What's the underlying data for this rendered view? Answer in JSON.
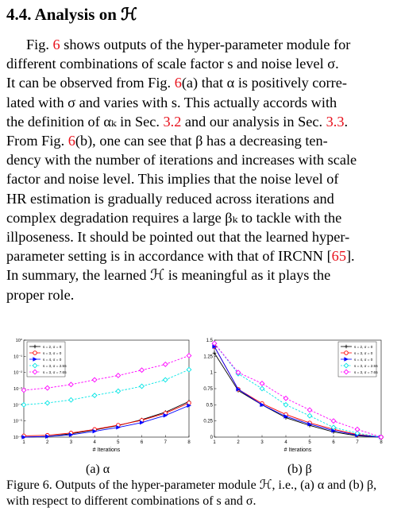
{
  "section": {
    "heading": "4.4. Analysis on ℋ"
  },
  "paragraph": {
    "lines": [
      [
        "Fig. ",
        "6",
        " shows outputs of the hyper-parameter module for"
      ],
      [
        "different combinations of scale factor s and noise level σ."
      ],
      [
        "It can be observed from Fig. ",
        "6",
        "(a) that α is positively corre-"
      ],
      [
        "lated with σ and varies with s. This actually accords with"
      ],
      [
        "the definition of αₖ in Sec. ",
        "3.2",
        " and our analysis in Sec. ",
        "3.3",
        "."
      ],
      [
        "From Fig. ",
        "6",
        "(b), one can see that β has a decreasing ten-"
      ],
      [
        "dency with the number of iterations and increases with scale"
      ],
      [
        "factor and noise level. This implies that the noise level of"
      ],
      [
        "HR estimation is gradually reduced across iterations and"
      ],
      [
        "complex degradation requires a large βₖ to tackle with the"
      ],
      [
        "illposeness. It should be pointed out that the learned hyper-"
      ],
      [
        "parameter setting is in accordance with that of IRCNN [",
        "65",
        "]."
      ],
      [
        "In summary, the learned ℋ is meaningful as it plays the"
      ],
      [
        "proper role."
      ]
    ]
  },
  "legend_labels": [
    "s = 2, σ = 0",
    "s = 3, σ = 0",
    "s = 4, σ = 0",
    "s = 3, σ = 2.55",
    "s = 3, σ = 7.65"
  ],
  "colors": [
    "#000000",
    "#ff0000",
    "#0000ff",
    "#00e5e5",
    "#ff00ff"
  ],
  "chart_data": [
    {
      "type": "line",
      "y_scale": "log",
      "xlabel": "# Iterations",
      "x": [
        1,
        2,
        3,
        4,
        5,
        6,
        7,
        8
      ],
      "xlim": [
        1,
        8
      ],
      "ylim_exponent": [
        -6,
        0
      ],
      "ytick_labels": [
        "10⁻⁶",
        "10⁻⁵",
        "10⁻⁴",
        "10⁻³",
        "10⁻²",
        "10⁻¹",
        "10⁰"
      ],
      "series": [
        {
          "name": "s = 2, σ = 0",
          "values": [
            1e-06,
            1.1e-06,
            1.6e-06,
            2.8e-06,
            5.2e-06,
            1.2e-05,
            3.5e-05,
            0.00016
          ]
        },
        {
          "name": "s = 3, σ = 0",
          "values": [
            1.2e-06,
            1.3e-06,
            1.8e-06,
            3e-06,
            5.5e-06,
            1.1e-05,
            3e-05,
            0.00013
          ]
        },
        {
          "name": "s = 4, σ = 0",
          "values": [
            1e-06,
            1.1e-06,
            1.4e-06,
            2.3e-06,
            4e-06,
            8e-06,
            2.2e-05,
            9e-05
          ]
        },
        {
          "name": "s = 3, σ = 2.55",
          "values": [
            0.0001,
            0.00013,
            0.0002,
            0.00038,
            0.0007,
            0.0014,
            0.0035,
            0.015
          ]
        },
        {
          "name": "s = 3, σ = 7.65",
          "values": [
            0.0008,
            0.0011,
            0.0018,
            0.0035,
            0.0065,
            0.014,
            0.032,
            0.11
          ]
        }
      ],
      "legend": "top-left",
      "sublabel": "(a) α"
    },
    {
      "type": "line",
      "y_scale": "linear",
      "xlabel": "# Iterations",
      "x": [
        1,
        2,
        3,
        4,
        5,
        6,
        7,
        8
      ],
      "xlim": [
        1,
        8
      ],
      "ylim": [
        0,
        1.5
      ],
      "yticks": [
        0,
        0.25,
        0.5,
        0.75,
        1,
        1.25,
        1.5
      ],
      "series": [
        {
          "name": "s = 2, σ = 0",
          "values": [
            1.3,
            0.72,
            0.5,
            0.3,
            0.18,
            0.08,
            0.02,
            0.0
          ]
        },
        {
          "name": "s = 3, σ = 0",
          "values": [
            1.4,
            0.74,
            0.52,
            0.35,
            0.22,
            0.12,
            0.04,
            0.0
          ]
        },
        {
          "name": "s = 4, σ = 0",
          "values": [
            1.4,
            0.74,
            0.5,
            0.32,
            0.2,
            0.1,
            0.03,
            0.0
          ]
        },
        {
          "name": "s = 3, σ = 2.55",
          "values": [
            1.45,
            0.98,
            0.75,
            0.5,
            0.33,
            0.15,
            0.06,
            0.0
          ]
        },
        {
          "name": "s = 3, σ = 7.65",
          "values": [
            1.45,
            1.0,
            0.83,
            0.6,
            0.42,
            0.25,
            0.12,
            0.0
          ]
        }
      ],
      "legend": "top-right",
      "sublabel": "(b) β"
    }
  ],
  "caption": {
    "text": "Figure 6. Outputs of the hyper-parameter module ℋ, i.e., (a) α and (b) β, with respect to different combinations of s and σ."
  }
}
